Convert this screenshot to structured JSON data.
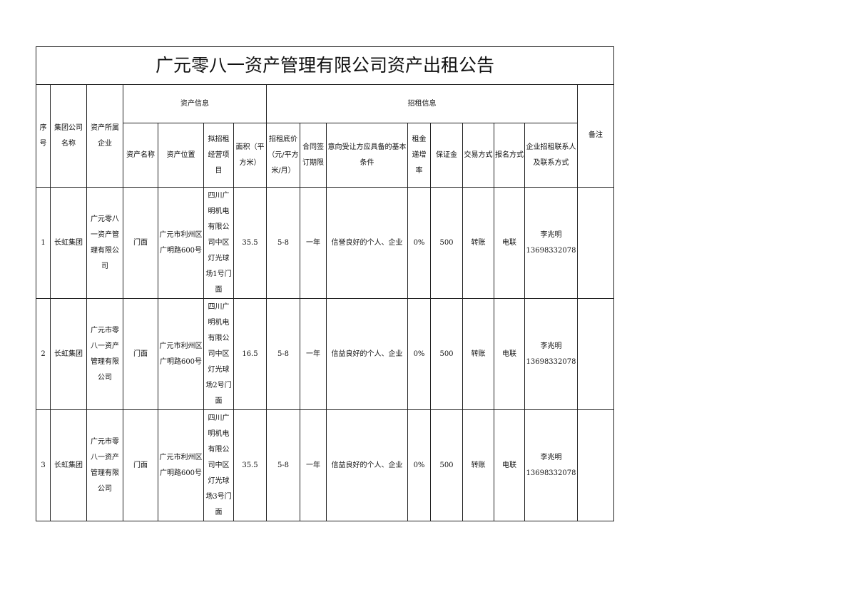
{
  "title": "广元零八一资产管理有限公司资产出租公告",
  "headers": {
    "seq": "序号",
    "group": "集团公司名称",
    "owner": "资产所属企业",
    "asset_info": "资产信息",
    "lease_info": "招租信息",
    "remark": "备注",
    "asset_name": "资产名称",
    "asset_location": "资产位置",
    "business": "拟招租经营项目",
    "area": "面积（平方米）",
    "price": "招租底价（元/平方米/月）",
    "term": "合同签订期限",
    "conditions": "意向受让方应具备的基本条件",
    "increase": "租金递增率",
    "deposit": "保证金",
    "trade": "交易方式",
    "signup": "报名方式",
    "contact": "企业招租联系人及联系方式"
  },
  "rows": [
    {
      "seq": "1",
      "group": "长虹集团",
      "owner": "广元零八一资产管理有限公司",
      "asset_name": "门面",
      "location": "广元市利州区广明路600号",
      "business": "四川广明机电有限公司中区灯光球场1号门面",
      "area": "35.5",
      "price": "5-8",
      "term": "一年",
      "conditions": "信誉良好的个人、企业",
      "increase": "0%",
      "deposit": "500",
      "trade": "转账",
      "signup": "电联",
      "contact_name": "李兆明",
      "contact_phone": "13698332078",
      "remark": ""
    },
    {
      "seq": "2",
      "group": "长虹集团",
      "owner": "广元市零八一资产管理有限公司",
      "asset_name": "门面",
      "location": "广元市利州区广明路600号",
      "business": "四川广明机电有限公司中区灯光球场2号门面",
      "area": "16.5",
      "price": "5-8",
      "term": "一年",
      "conditions": "信益良好的个人、企业",
      "increase": "0%",
      "deposit": "500",
      "trade": "转账",
      "signup": "电联",
      "contact_name": "李兆明",
      "contact_phone": "13698332078",
      "remark": ""
    },
    {
      "seq": "3",
      "group": "长虹集团",
      "owner": "广元市零八一资产管理有限公司",
      "asset_name": "门面",
      "location": "广元市利州区广明路600号",
      "business": "四川广明机电有限公司中区灯光球场3号门面",
      "area": "35.5",
      "price": "5-8",
      "term": "一年",
      "conditions": "信益良好的个人、企业",
      "increase": "0%",
      "deposit": "500",
      "trade": "转账",
      "signup": "电联",
      "contact_name": "李兆明",
      "contact_phone": "13698332078",
      "remark": ""
    }
  ]
}
